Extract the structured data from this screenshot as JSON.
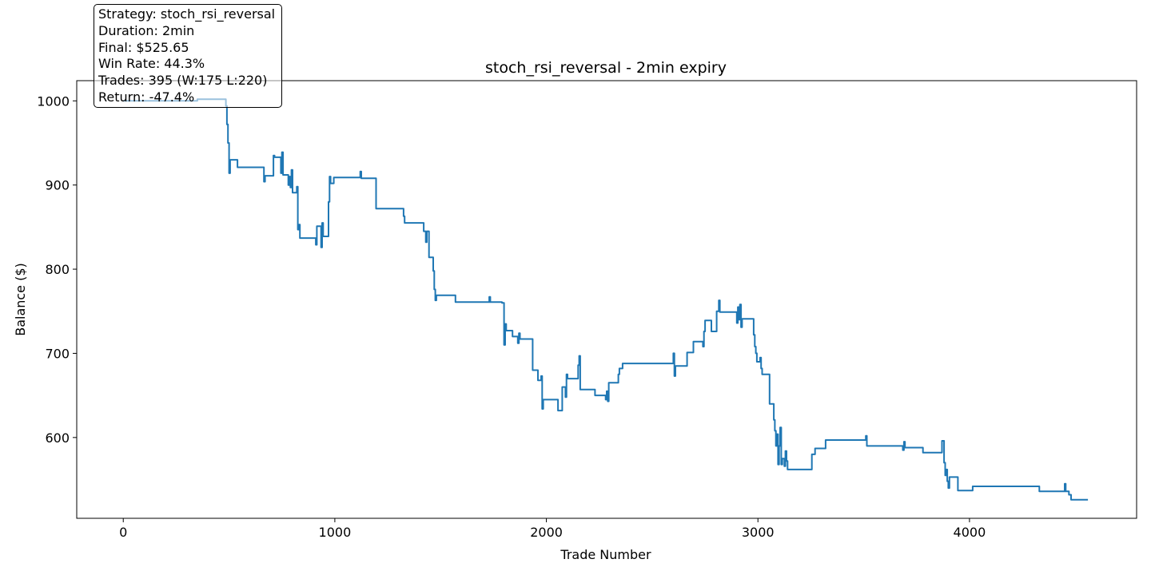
{
  "chart_data": {
    "type": "line",
    "title": "stoch_rsi_reversal - 2min expiry",
    "xlabel": "Trade Number",
    "ylabel": "Balance ($)",
    "xlim": [
      -220,
      4790
    ],
    "ylim": [
      504,
      1024
    ],
    "x_ticks": [
      0,
      1000,
      2000,
      3000,
      4000
    ],
    "y_ticks": [
      600,
      700,
      800,
      900,
      1000
    ],
    "grid": false,
    "series": [
      {
        "color": "#1f77b4",
        "points": [
          [
            0,
            1000
          ],
          [
            350,
            1000
          ],
          [
            350,
            1002
          ],
          [
            485,
            1002
          ],
          [
            485,
            994
          ],
          [
            490,
            994
          ],
          [
            490,
            972
          ],
          [
            495,
            972
          ],
          [
            495,
            950
          ],
          [
            500,
            950
          ],
          [
            500,
            914
          ],
          [
            505,
            914
          ],
          [
            505,
            930
          ],
          [
            540,
            930
          ],
          [
            540,
            921
          ],
          [
            665,
            921
          ],
          [
            665,
            904
          ],
          [
            670,
            904
          ],
          [
            670,
            911
          ],
          [
            710,
            911
          ],
          [
            710,
            935
          ],
          [
            715,
            935
          ],
          [
            715,
            933
          ],
          [
            745,
            933
          ],
          [
            745,
            914
          ],
          [
            750,
            914
          ],
          [
            750,
            939
          ],
          [
            755,
            939
          ],
          [
            755,
            912
          ],
          [
            780,
            912
          ],
          [
            780,
            900
          ],
          [
            785,
            900
          ],
          [
            785,
            910
          ],
          [
            790,
            910
          ],
          [
            790,
            897
          ],
          [
            795,
            897
          ],
          [
            795,
            918
          ],
          [
            800,
            918
          ],
          [
            800,
            891
          ],
          [
            820,
            891
          ],
          [
            820,
            898
          ],
          [
            825,
            898
          ],
          [
            825,
            847
          ],
          [
            830,
            847
          ],
          [
            830,
            853
          ],
          [
            835,
            853
          ],
          [
            835,
            837
          ],
          [
            910,
            837
          ],
          [
            910,
            829
          ],
          [
            915,
            829
          ],
          [
            915,
            851
          ],
          [
            935,
            851
          ],
          [
            935,
            826
          ],
          [
            940,
            826
          ],
          [
            940,
            855
          ],
          [
            945,
            855
          ],
          [
            945,
            839
          ],
          [
            970,
            839
          ],
          [
            970,
            880
          ],
          [
            975,
            880
          ],
          [
            975,
            910
          ],
          [
            980,
            910
          ],
          [
            980,
            902
          ],
          [
            995,
            902
          ],
          [
            995,
            909
          ],
          [
            1120,
            909
          ],
          [
            1120,
            916
          ],
          [
            1125,
            916
          ],
          [
            1125,
            908
          ],
          [
            1195,
            908
          ],
          [
            1195,
            872
          ],
          [
            1325,
            872
          ],
          [
            1325,
            863
          ],
          [
            1330,
            863
          ],
          [
            1330,
            855
          ],
          [
            1420,
            855
          ],
          [
            1420,
            845
          ],
          [
            1430,
            845
          ],
          [
            1430,
            832
          ],
          [
            1435,
            832
          ],
          [
            1435,
            845
          ],
          [
            1445,
            845
          ],
          [
            1445,
            814
          ],
          [
            1465,
            814
          ],
          [
            1465,
            798
          ],
          [
            1470,
            798
          ],
          [
            1470,
            776
          ],
          [
            1475,
            776
          ],
          [
            1475,
            763
          ],
          [
            1480,
            763
          ],
          [
            1480,
            769
          ],
          [
            1570,
            769
          ],
          [
            1570,
            761
          ],
          [
            1730,
            761
          ],
          [
            1730,
            767
          ],
          [
            1735,
            767
          ],
          [
            1735,
            761
          ],
          [
            1790,
            761
          ],
          [
            1790,
            760
          ],
          [
            1800,
            760
          ],
          [
            1800,
            710
          ],
          [
            1805,
            710
          ],
          [
            1805,
            735
          ],
          [
            1810,
            735
          ],
          [
            1810,
            727
          ],
          [
            1840,
            727
          ],
          [
            1840,
            720
          ],
          [
            1865,
            720
          ],
          [
            1865,
            712
          ],
          [
            1870,
            712
          ],
          [
            1870,
            724
          ],
          [
            1875,
            724
          ],
          [
            1875,
            717
          ],
          [
            1935,
            717
          ],
          [
            1935,
            680
          ],
          [
            1960,
            680
          ],
          [
            1960,
            668
          ],
          [
            1975,
            668
          ],
          [
            1975,
            673
          ],
          [
            1980,
            673
          ],
          [
            1980,
            634
          ],
          [
            1985,
            634
          ],
          [
            1985,
            645
          ],
          [
            2055,
            645
          ],
          [
            2055,
            632
          ],
          [
            2075,
            632
          ],
          [
            2075,
            660
          ],
          [
            2090,
            660
          ],
          [
            2090,
            648
          ],
          [
            2095,
            648
          ],
          [
            2095,
            675
          ],
          [
            2100,
            675
          ],
          [
            2100,
            670
          ],
          [
            2150,
            670
          ],
          [
            2150,
            686
          ],
          [
            2155,
            686
          ],
          [
            2155,
            697
          ],
          [
            2160,
            697
          ],
          [
            2160,
            657
          ],
          [
            2230,
            657
          ],
          [
            2230,
            650
          ],
          [
            2280,
            650
          ],
          [
            2280,
            645
          ],
          [
            2285,
            645
          ],
          [
            2285,
            655
          ],
          [
            2290,
            655
          ],
          [
            2290,
            643
          ],
          [
            2295,
            643
          ],
          [
            2295,
            665
          ],
          [
            2340,
            665
          ],
          [
            2340,
            675
          ],
          [
            2345,
            675
          ],
          [
            2345,
            682
          ],
          [
            2360,
            682
          ],
          [
            2360,
            688
          ],
          [
            2600,
            688
          ],
          [
            2600,
            700
          ],
          [
            2605,
            700
          ],
          [
            2605,
            673
          ],
          [
            2610,
            673
          ],
          [
            2610,
            685
          ],
          [
            2665,
            685
          ],
          [
            2665,
            701
          ],
          [
            2695,
            701
          ],
          [
            2695,
            714
          ],
          [
            2740,
            714
          ],
          [
            2740,
            708
          ],
          [
            2745,
            708
          ],
          [
            2745,
            726
          ],
          [
            2750,
            726
          ],
          [
            2750,
            739
          ],
          [
            2780,
            739
          ],
          [
            2780,
            726
          ],
          [
            2805,
            726
          ],
          [
            2805,
            750
          ],
          [
            2815,
            750
          ],
          [
            2815,
            763
          ],
          [
            2820,
            763
          ],
          [
            2820,
            749
          ],
          [
            2900,
            749
          ],
          [
            2900,
            736
          ],
          [
            2905,
            736
          ],
          [
            2905,
            755
          ],
          [
            2910,
            755
          ],
          [
            2910,
            740
          ],
          [
            2915,
            740
          ],
          [
            2915,
            758
          ],
          [
            2920,
            758
          ],
          [
            2920,
            731
          ],
          [
            2925,
            731
          ],
          [
            2925,
            741
          ],
          [
            2980,
            741
          ],
          [
            2980,
            722
          ],
          [
            2985,
            722
          ],
          [
            2985,
            708
          ],
          [
            2990,
            708
          ],
          [
            2990,
            700
          ],
          [
            2995,
            700
          ],
          [
            2995,
            690
          ],
          [
            3010,
            690
          ],
          [
            3010,
            695
          ],
          [
            3015,
            695
          ],
          [
            3015,
            682
          ],
          [
            3020,
            682
          ],
          [
            3020,
            675
          ],
          [
            3055,
            675
          ],
          [
            3055,
            640
          ],
          [
            3075,
            640
          ],
          [
            3075,
            621
          ],
          [
            3080,
            621
          ],
          [
            3080,
            608
          ],
          [
            3085,
            608
          ],
          [
            3085,
            590
          ],
          [
            3090,
            590
          ],
          [
            3090,
            604
          ],
          [
            3095,
            604
          ],
          [
            3095,
            568
          ],
          [
            3100,
            568
          ],
          [
            3100,
            590
          ],
          [
            3105,
            590
          ],
          [
            3105,
            612
          ],
          [
            3110,
            612
          ],
          [
            3110,
            568
          ],
          [
            3115,
            568
          ],
          [
            3115,
            575
          ],
          [
            3125,
            575
          ],
          [
            3125,
            566
          ],
          [
            3130,
            566
          ],
          [
            3130,
            584
          ],
          [
            3135,
            584
          ],
          [
            3135,
            572
          ],
          [
            3140,
            572
          ],
          [
            3140,
            562
          ],
          [
            3255,
            562
          ],
          [
            3255,
            580
          ],
          [
            3270,
            580
          ],
          [
            3270,
            587
          ],
          [
            3320,
            587
          ],
          [
            3320,
            597
          ],
          [
            3510,
            597
          ],
          [
            3510,
            602
          ],
          [
            3515,
            602
          ],
          [
            3515,
            590
          ],
          [
            3685,
            590
          ],
          [
            3685,
            585
          ],
          [
            3690,
            585
          ],
          [
            3690,
            595
          ],
          [
            3695,
            595
          ],
          [
            3695,
            588
          ],
          [
            3780,
            588
          ],
          [
            3780,
            582
          ],
          [
            3870,
            582
          ],
          [
            3870,
            596
          ],
          [
            3880,
            596
          ],
          [
            3880,
            570
          ],
          [
            3885,
            570
          ],
          [
            3885,
            555
          ],
          [
            3890,
            555
          ],
          [
            3890,
            562
          ],
          [
            3895,
            562
          ],
          [
            3895,
            548
          ],
          [
            3900,
            548
          ],
          [
            3900,
            540
          ],
          [
            3905,
            540
          ],
          [
            3905,
            553
          ],
          [
            3945,
            553
          ],
          [
            3945,
            537
          ],
          [
            4015,
            537
          ],
          [
            4015,
            542
          ],
          [
            4330,
            542
          ],
          [
            4330,
            536
          ],
          [
            4450,
            536
          ],
          [
            4450,
            545
          ],
          [
            4455,
            545
          ],
          [
            4455,
            536
          ],
          [
            4470,
            536
          ],
          [
            4470,
            532
          ],
          [
            4480,
            532
          ],
          [
            4480,
            526
          ],
          [
            4560,
            526
          ]
        ]
      }
    ],
    "annotation": {
      "lines": [
        "Strategy: stoch_rsi_reversal",
        "Duration: 2min",
        "Final: $525.65",
        "Win Rate: 44.3%",
        "Trades: 395 (W:175 L:220)",
        "Return: -47.4%"
      ]
    }
  }
}
